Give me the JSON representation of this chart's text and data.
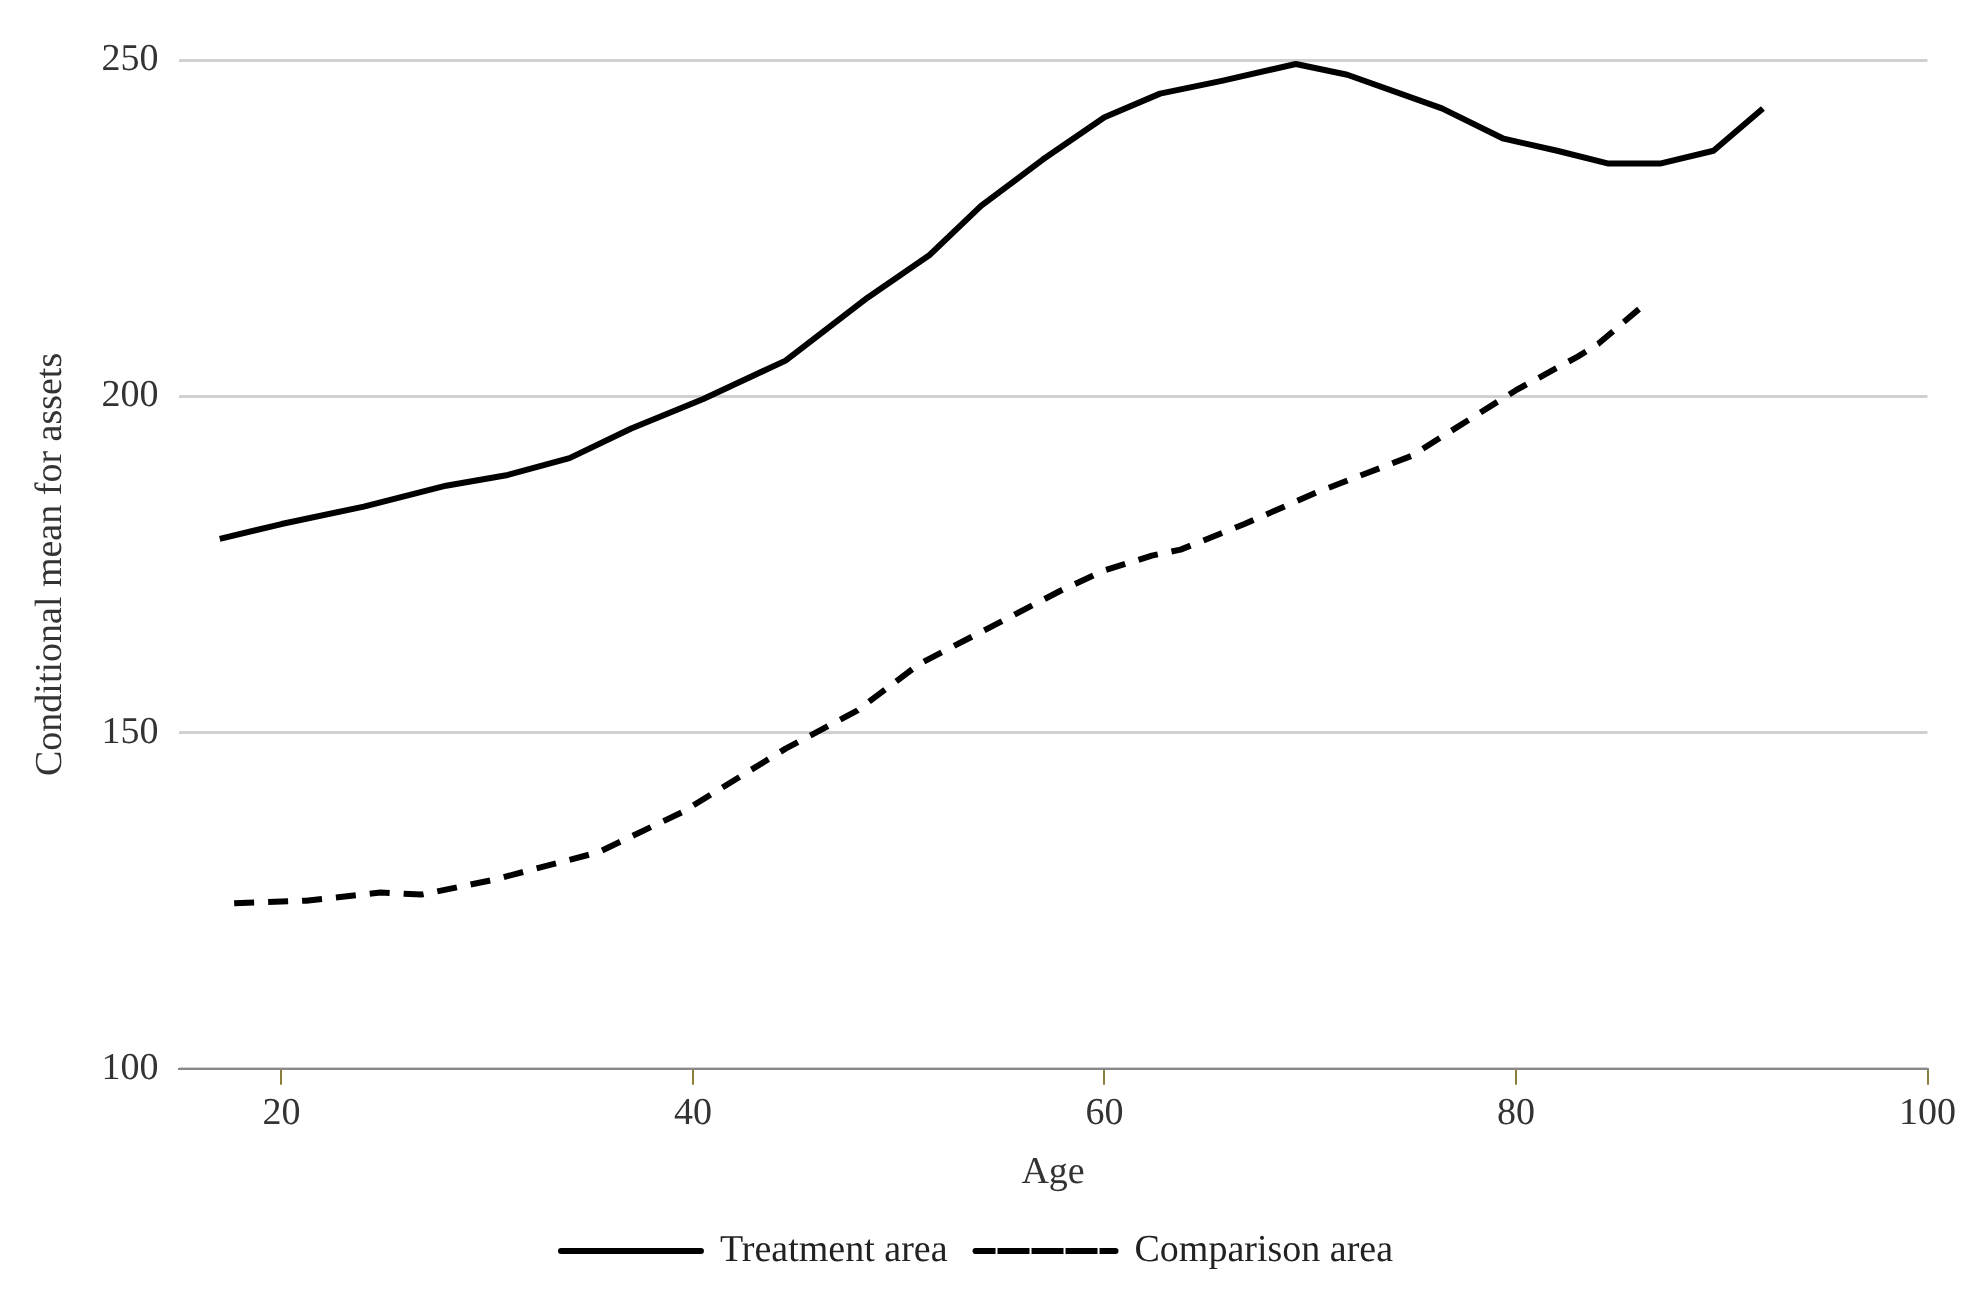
{
  "chart_data": {
    "type": "line",
    "xlabel": "Age",
    "ylabel": "Conditional mean for assets",
    "xlim": [
      15,
      100
    ],
    "xticks": [
      20,
      40,
      60,
      80,
      100
    ],
    "ylim": [
      100,
      250
    ],
    "yticks": [
      100,
      150,
      200,
      250
    ],
    "grid": "y",
    "legend": "bottom",
    "marker": "none",
    "series": [
      {
        "name": "Treatment area",
        "color": "#000000",
        "line_style": "solid",
        "x": [
          17,
          20,
          24,
          28,
          31,
          34,
          37,
          40.5,
          44.5,
          48.5,
          51.5,
          54,
          57,
          60,
          62.7,
          65.7,
          69.3,
          71.8,
          76.4,
          79.4,
          82,
          84.5,
          87,
          89.6,
          92
        ],
        "values": [
          178.8,
          181,
          183.6,
          186.7,
          188.3,
          190.8,
          195.2,
          199.6,
          205.3,
          214.7,
          221,
          228.3,
          235.2,
          241.5,
          245,
          246.9,
          249.4,
          247.8,
          242.8,
          238.3,
          236.5,
          234.6,
          234.6,
          236.5,
          242.8
        ]
      },
      {
        "name": "Comparison area",
        "color": "#000000",
        "line_style": "dashed",
        "x": [
          17.7,
          21.2,
          24.8,
          26.8,
          30.3,
          35.4,
          39.5,
          44.5,
          48,
          51,
          54.6,
          58,
          60,
          62.3,
          63.7,
          66.8,
          70.3,
          74.9,
          80,
          83,
          84,
          86.3
        ],
        "values": [
          124.6,
          125,
          126.2,
          125.9,
          128.1,
          132.2,
          138.2,
          147.6,
          153.3,
          160.2,
          165.9,
          171.3,
          174.1,
          176.3,
          177.2,
          181,
          185.7,
          191.1,
          200.9,
          205.9,
          207.8,
          213.8
        ]
      }
    ]
  }
}
